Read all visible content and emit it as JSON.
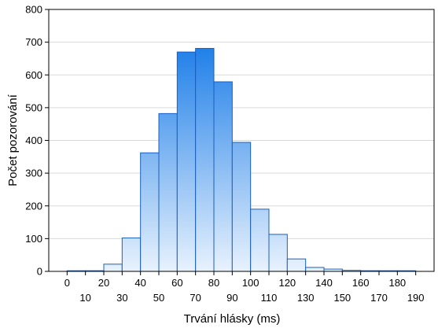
{
  "chart_data": {
    "type": "bar",
    "title": "",
    "xlabel": "Trvání hlásky (ms)",
    "ylabel": "Počet pozorování",
    "ylim": [
      0,
      800
    ],
    "xlim": [
      -10,
      200
    ],
    "yticks": [
      0,
      100,
      200,
      300,
      400,
      500,
      600,
      700,
      800
    ],
    "xticks_row1": [
      0,
      20,
      40,
      60,
      80,
      100,
      120,
      140,
      160,
      180
    ],
    "xticks_row2": [
      10,
      30,
      50,
      70,
      90,
      110,
      130,
      150,
      170,
      190
    ],
    "bin_width": 10,
    "bins": [
      {
        "start": 0,
        "value": 0
      },
      {
        "start": 10,
        "value": 2
      },
      {
        "start": 20,
        "value": 22
      },
      {
        "start": 30,
        "value": 102
      },
      {
        "start": 40,
        "value": 362
      },
      {
        "start": 50,
        "value": 482
      },
      {
        "start": 60,
        "value": 670
      },
      {
        "start": 70,
        "value": 681
      },
      {
        "start": 80,
        "value": 579
      },
      {
        "start": 90,
        "value": 394
      },
      {
        "start": 100,
        "value": 190
      },
      {
        "start": 110,
        "value": 113
      },
      {
        "start": 120,
        "value": 38
      },
      {
        "start": 130,
        "value": 12
      },
      {
        "start": 140,
        "value": 7
      },
      {
        "start": 150,
        "value": 3
      },
      {
        "start": 160,
        "value": 2
      },
      {
        "start": 170,
        "value": 1
      },
      {
        "start": 180,
        "value": 1
      }
    ],
    "grid": true,
    "colors": {
      "bar_light": "#e8f2fd",
      "bar_dark": "#1f7fe8",
      "bar_stroke": "#1b5fbf",
      "grid": "#d9d9d9",
      "axis": "#000000"
    }
  }
}
